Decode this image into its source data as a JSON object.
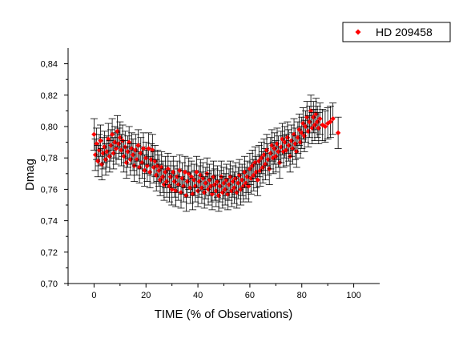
{
  "chart_data": {
    "type": "scatter",
    "xlabel": "TIME (% of Observations)",
    "ylabel": "Dmag",
    "xlim": [
      -10,
      110
    ],
    "ylim": [
      0.7,
      0.85
    ],
    "x_ticks": [
      0,
      20,
      40,
      60,
      80,
      100
    ],
    "y_ticks": [
      0.7,
      0.72,
      0.74,
      0.76,
      0.78,
      0.8,
      0.82,
      0.84
    ],
    "y_tick_labels": [
      "0,70",
      "0,72",
      "0,74",
      "0,76",
      "0,78",
      "0,80",
      "0,82",
      "0,84"
    ],
    "x_tick_labels": [
      "0",
      "20",
      "40",
      "60",
      "80",
      "100"
    ],
    "error_bar": 0.01,
    "legend_position": "top-right",
    "grid": false,
    "series": [
      {
        "name": "HD 209458",
        "marker": "diamond",
        "color": "#ff0000",
        "x": [
          0.0,
          0.5,
          1.0,
          1.5,
          2.0,
          2.5,
          3.0,
          3.5,
          4.0,
          4.5,
          5.0,
          5.5,
          6.0,
          6.5,
          7.0,
          7.5,
          8.0,
          8.5,
          9.0,
          9.5,
          10.0,
          10.5,
          11.0,
          11.5,
          12.0,
          12.5,
          13.0,
          13.5,
          14.0,
          14.5,
          15.0,
          15.5,
          16.0,
          16.5,
          17.0,
          17.5,
          18.0,
          18.5,
          19.0,
          19.5,
          20.0,
          20.5,
          21.0,
          21.5,
          22.0,
          22.5,
          23.0,
          23.5,
          24.0,
          24.5,
          25.0,
          25.5,
          26.0,
          26.5,
          27.0,
          27.5,
          28.0,
          28.5,
          29.0,
          29.5,
          30.0,
          30.5,
          31.0,
          31.5,
          32.0,
          32.5,
          33.0,
          33.5,
          34.0,
          34.5,
          35.0,
          35.5,
          36.0,
          36.5,
          37.0,
          37.5,
          38.0,
          38.5,
          39.0,
          39.5,
          40.0,
          40.5,
          41.0,
          41.5,
          42.0,
          42.5,
          43.0,
          43.5,
          44.0,
          44.5,
          45.0,
          45.5,
          46.0,
          46.5,
          47.0,
          47.5,
          48.0,
          48.5,
          49.0,
          49.5,
          50.0,
          50.5,
          51.0,
          51.5,
          52.0,
          52.5,
          53.0,
          53.5,
          54.0,
          54.5,
          55.0,
          55.5,
          56.0,
          56.5,
          57.0,
          57.5,
          58.0,
          58.5,
          59.0,
          59.5,
          60.0,
          60.5,
          61.0,
          61.5,
          62.0,
          62.5,
          63.0,
          63.5,
          64.0,
          64.5,
          65.0,
          65.5,
          66.0,
          66.5,
          67.0,
          67.5,
          68.0,
          68.5,
          69.0,
          69.5,
          70.0,
          70.5,
          71.0,
          71.5,
          72.0,
          72.5,
          73.0,
          73.5,
          74.0,
          74.5,
          75.0,
          75.5,
          76.0,
          76.5,
          77.0,
          77.5,
          78.0,
          78.5,
          79.0,
          79.5,
          80.0,
          80.5,
          81.0,
          81.5,
          82.0,
          82.5,
          83.0,
          83.5,
          84.0,
          84.5,
          85.0,
          85.5,
          86.0,
          86.5,
          87.0,
          88.0,
          89.0,
          90.0,
          91.0,
          92.0,
          94.0
        ],
        "y": [
          0.795,
          0.782,
          0.789,
          0.778,
          0.785,
          0.791,
          0.776,
          0.783,
          0.787,
          0.779,
          0.784,
          0.792,
          0.781,
          0.788,
          0.795,
          0.783,
          0.79,
          0.786,
          0.797,
          0.789,
          0.793,
          0.785,
          0.791,
          0.781,
          0.787,
          0.777,
          0.784,
          0.79,
          0.779,
          0.786,
          0.782,
          0.775,
          0.785,
          0.779,
          0.788,
          0.774,
          0.783,
          0.777,
          0.786,
          0.772,
          0.78,
          0.775,
          0.786,
          0.771,
          0.779,
          0.785,
          0.774,
          0.778,
          0.769,
          0.775,
          0.772,
          0.766,
          0.774,
          0.768,
          0.763,
          0.771,
          0.765,
          0.773,
          0.762,
          0.768,
          0.76,
          0.771,
          0.765,
          0.759,
          0.768,
          0.763,
          0.772,
          0.758,
          0.767,
          0.762,
          0.771,
          0.756,
          0.765,
          0.77,
          0.761,
          0.768,
          0.757,
          0.766,
          0.762,
          0.771,
          0.759,
          0.765,
          0.769,
          0.761,
          0.767,
          0.758,
          0.764,
          0.77,
          0.76,
          0.766,
          0.762,
          0.757,
          0.768,
          0.763,
          0.759,
          0.765,
          0.756,
          0.762,
          0.768,
          0.758,
          0.764,
          0.76,
          0.766,
          0.757,
          0.763,
          0.768,
          0.759,
          0.765,
          0.761,
          0.767,
          0.758,
          0.764,
          0.769,
          0.76,
          0.766,
          0.762,
          0.771,
          0.764,
          0.768,
          0.762,
          0.773,
          0.767,
          0.775,
          0.769,
          0.777,
          0.771,
          0.766,
          0.778,
          0.772,
          0.78,
          0.774,
          0.782,
          0.776,
          0.785,
          0.779,
          0.773,
          0.783,
          0.788,
          0.78,
          0.786,
          0.781,
          0.789,
          0.784,
          0.777,
          0.787,
          0.792,
          0.784,
          0.79,
          0.785,
          0.793,
          0.788,
          0.781,
          0.791,
          0.786,
          0.795,
          0.789,
          0.784,
          0.793,
          0.798,
          0.79,
          0.796,
          0.802,
          0.794,
          0.8,
          0.806,
          0.797,
          0.803,
          0.81,
          0.799,
          0.806,
          0.801,
          0.808,
          0.803,
          0.799,
          0.805,
          0.801,
          0.8,
          0.802,
          0.803,
          0.805,
          0.796
        ]
      }
    ]
  }
}
